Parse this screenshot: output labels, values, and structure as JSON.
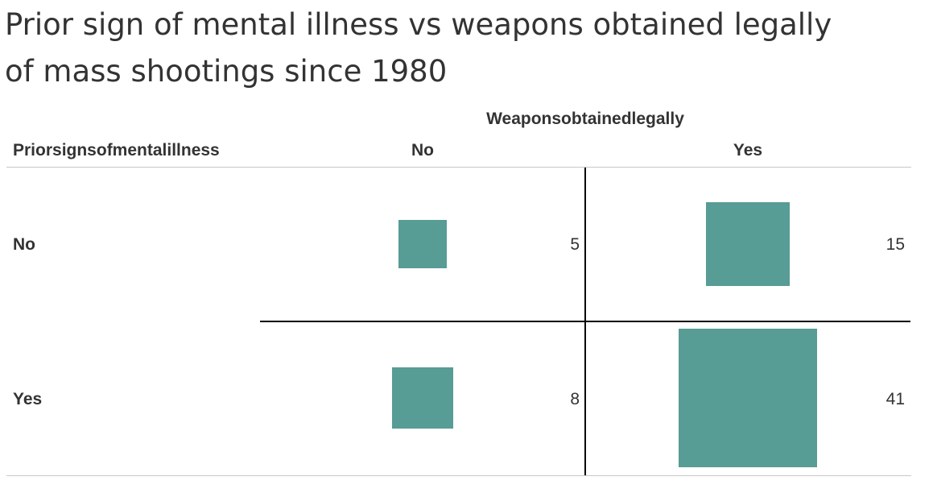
{
  "title_lines": [
    "Prior sign of mental illness vs weapons obtained legally",
    "of mass shootings since 1980"
  ],
  "colors": {
    "mark": "#579c95",
    "text": "#333333",
    "divider": "#000000",
    "rule": "#c8c8c8"
  },
  "chart_data": {
    "type": "table",
    "mark_type": "square",
    "title": "Prior sign of mental illness vs weapons obtained legally of mass shootings since 1980",
    "column_field": "Weaponsobtainedlegally",
    "row_field": "Priorsignsofmentalillness",
    "columns": [
      "No",
      "Yes"
    ],
    "rows": [
      "No",
      "Yes"
    ],
    "values": [
      [
        5,
        15
      ],
      [
        8,
        41
      ]
    ],
    "labels": [
      [
        "5",
        "15"
      ],
      [
        "8",
        "41"
      ]
    ]
  }
}
